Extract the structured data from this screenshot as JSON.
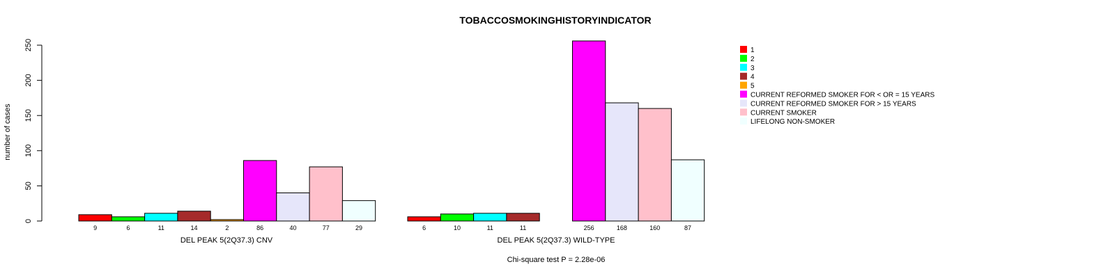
{
  "chart_data": {
    "type": "bar",
    "title": "TOBACCOSMOKINGHISTORYINDICATOR",
    "ylabel": "number of cases",
    "ylim": [
      0,
      250
    ],
    "yticks": [
      "0",
      "50",
      "100",
      "150",
      "200",
      "250"
    ],
    "categories": [
      "1",
      "2",
      "3",
      "4",
      "5",
      "CURRENT REFORMED SMOKER FOR < OR = 15 YEARS",
      "CURRENT REFORMED SMOKER FOR > 15 YEARS",
      "CURRENT SMOKER",
      "LIFELONG NON-SMOKER"
    ],
    "colors": [
      "#ff0000",
      "#00ff00",
      "#00ffff",
      "#a52a2a",
      "#ffa500",
      "#ff00ff",
      "#e6e6fa",
      "#ffc0cb",
      "#f0ffff"
    ],
    "groups": [
      {
        "name": "DEL PEAK  5(2Q37.3) CNV",
        "values": [
          9,
          6,
          11,
          14,
          2,
          86,
          40,
          77,
          29
        ],
        "labels": [
          "9",
          "6",
          "11",
          "14",
          "2",
          "86",
          "40",
          "77",
          "29"
        ]
      },
      {
        "name": "DEL PEAK  5(2Q37.3) WILD-TYPE",
        "values": [
          6,
          10,
          11,
          11,
          0,
          256,
          168,
          160,
          87
        ],
        "labels": [
          "6",
          "10",
          "11",
          "11",
          "",
          "256",
          "168",
          "160",
          "87"
        ]
      }
    ],
    "legend_position": "top-right",
    "grid": false
  },
  "test_text": "Chi-square test P = 2.28e-06"
}
